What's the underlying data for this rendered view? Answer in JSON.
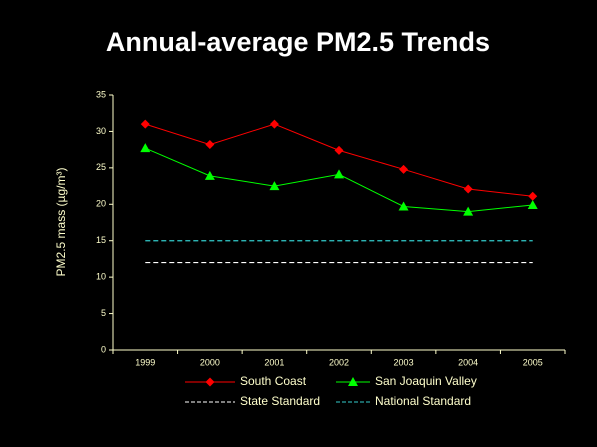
{
  "chart_data": {
    "type": "line",
    "title": "Annual-average PM2.5 Trends",
    "y_label": "PM2.5 mass (µg/m³)",
    "categories": [
      "1999",
      "2000",
      "2001",
      "2002",
      "2003",
      "2004",
      "2005"
    ],
    "series": [
      {
        "name": "South Coast",
        "color": "#ff0000",
        "marker": "diamond",
        "values": [
          31,
          28.2,
          31,
          27.4,
          24.8,
          22.1,
          21.1
        ]
      },
      {
        "name": "San Joaquin Valley",
        "color": "#00ff00",
        "marker": "triangle",
        "values": [
          27.7,
          23.9,
          22.5,
          24.1,
          19.7,
          19,
          19.9
        ]
      },
      {
        "name": "State Standard",
        "color": "#ffffff",
        "dashed": true,
        "values": [
          12,
          12,
          12,
          12,
          12,
          12,
          12
        ]
      },
      {
        "name": "National Standard",
        "color": "#33cccc",
        "dashed": true,
        "values": [
          15,
          15,
          15,
          15,
          15,
          15,
          15
        ]
      }
    ],
    "ylim": [
      0,
      35
    ],
    "yticks": [
      0,
      5,
      10,
      15,
      20,
      25,
      30,
      35
    ],
    "axis_color": "#ffffcc"
  }
}
